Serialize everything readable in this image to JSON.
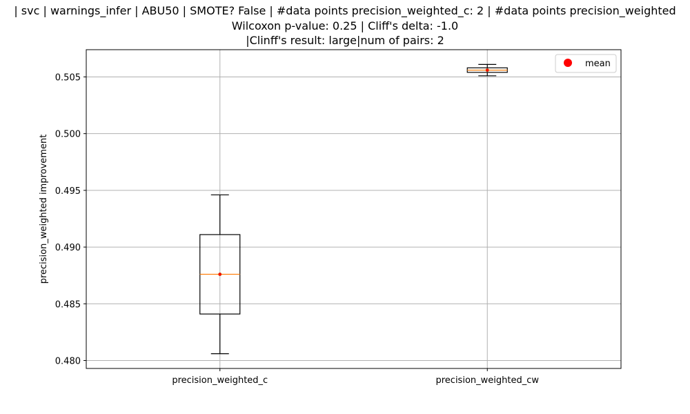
{
  "chart_data": {
    "type": "box",
    "title_lines": [
      " | svc | warnings_infer | ABU50 | SMOTE? False | #data points precision_weighted_c: 2 | #data points precision_weighted",
      "Wilcoxon p-value: 0.25 | Cliff's delta: -1.0",
      "|Clinff's result: large|num of pairs: 2"
    ],
    "ylabel": "precision_weighted improvement",
    "xlabel": "",
    "ylim": [
      0.4793,
      0.5074
    ],
    "y_ticks": [
      0.48,
      0.485,
      0.49,
      0.495,
      0.5,
      0.505
    ],
    "y_tick_labels": [
      "0.480",
      "0.485",
      "0.490",
      "0.495",
      "0.500",
      "0.505"
    ],
    "grid": true,
    "categories": [
      "precision_weighted_c",
      "precision_weighted_cw"
    ],
    "boxes": [
      {
        "name": "precision_weighted_c",
        "whislo": 0.4806,
        "q1": 0.4841,
        "med": 0.4876,
        "q3": 0.4911,
        "whishi": 0.4946,
        "mean": 0.4876
      },
      {
        "name": "precision_weighted_cw",
        "whislo": 0.5051,
        "q1": 0.5054,
        "med": 0.5056,
        "q3": 0.5058,
        "whishi": 0.5061,
        "mean": 0.5056
      }
    ],
    "legend": {
      "entries": [
        "mean"
      ],
      "placement": "top-right"
    },
    "colors": {
      "box": "#000000",
      "median": "#ff7f0e",
      "mean": "#ff0000",
      "grid": "#b0b0b0"
    }
  }
}
